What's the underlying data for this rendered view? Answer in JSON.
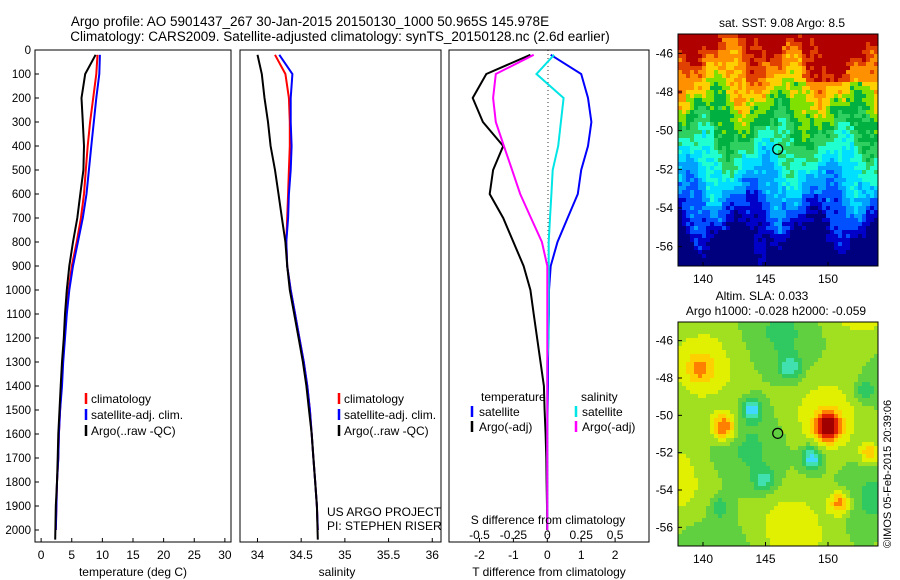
{
  "header": {
    "line1": "Argo profile: AO 5901437_267 30-Jan-2015 20150130_1000 50.965S 145.978E",
    "line2": "Climatology: CARS2009. Satellite-adjusted climatology: synTS_20150128.nc (2.6d earlier)"
  },
  "colors": {
    "climatology": "#ff0000",
    "satellite": "#0000ff",
    "argo": "#000000",
    "sat_salinity": "#00e5e5",
    "argo_salinity_diff": "#ff00ff"
  },
  "chart_data": [
    {
      "type": "line",
      "panel": "temperature",
      "xlabel": "temperature (deg C)",
      "ylabel": "",
      "xlim": [
        -1,
        31
      ],
      "ylim": [
        2050,
        0
      ],
      "xticks": [
        0,
        5,
        10,
        15,
        20,
        25,
        30
      ],
      "yticks": [
        0,
        100,
        200,
        300,
        400,
        500,
        600,
        700,
        800,
        900,
        1000,
        1100,
        1200,
        1300,
        1400,
        1500,
        1600,
        1700,
        1800,
        1900,
        2000
      ],
      "legend": [
        "climatology",
        "satellite-adj. clim.",
        "Argo(..raw -QC)"
      ],
      "series": [
        {
          "name": "climatology",
          "color": "#ff0000",
          "x": [
            9.2,
            9.0,
            8.5,
            8.0,
            7.6,
            7.3,
            7.0,
            6.5,
            5.8,
            5.0,
            4.5,
            4.1,
            3.8,
            3.5,
            3.3,
            3.1,
            2.9,
            2.8,
            2.6,
            2.5,
            2.4
          ],
          "y": [
            20,
            100,
            200,
            300,
            400,
            500,
            600,
            700,
            800,
            900,
            1000,
            1100,
            1200,
            1300,
            1400,
            1500,
            1600,
            1700,
            1800,
            1900,
            2000
          ]
        },
        {
          "name": "satellite-adj. clim.",
          "color": "#0000ff",
          "x": [
            9.6,
            9.5,
            9.0,
            8.6,
            8.2,
            7.8,
            7.4,
            6.8,
            6.0,
            5.2,
            4.6,
            4.2,
            3.9,
            3.6,
            3.4,
            3.1,
            2.9,
            2.8,
            2.6,
            2.5,
            2.4
          ],
          "y": [
            20,
            100,
            200,
            300,
            400,
            500,
            600,
            700,
            800,
            900,
            1000,
            1100,
            1200,
            1300,
            1400,
            1500,
            1600,
            1700,
            1800,
            1900,
            2000
          ]
        },
        {
          "name": "Argo(..raw -QC)",
          "color": "#000000",
          "x": [
            8.9,
            7.2,
            6.6,
            6.8,
            7.0,
            6.9,
            6.4,
            5.9,
            5.2,
            4.6,
            4.2,
            3.9,
            3.7,
            3.4,
            3.2,
            3.0,
            2.8,
            2.7,
            2.6,
            2.4,
            2.3
          ],
          "y": [
            20,
            100,
            200,
            300,
            400,
            500,
            600,
            700,
            800,
            900,
            1000,
            1100,
            1200,
            1300,
            1400,
            1500,
            1600,
            1700,
            1800,
            1900,
            2040
          ]
        }
      ]
    },
    {
      "type": "line",
      "panel": "salinity",
      "xlabel": "salinity",
      "ylabel": "",
      "xlim": [
        33.8,
        36.1
      ],
      "ylim": [
        2050,
        0
      ],
      "xticks": [
        34,
        34.5,
        35,
        35.5,
        36
      ],
      "legend": [
        "climatology",
        "satellite-adj. clim.",
        "Argo(..raw -QC)"
      ],
      "annotations": [
        "US ARGO PROJECT",
        "PI: STEPHEN RISER"
      ],
      "series": [
        {
          "name": "climatology",
          "color": "#ff0000",
          "x": [
            34.2,
            34.32,
            34.36,
            34.37,
            34.37,
            34.36,
            34.35,
            34.34,
            34.33,
            34.34,
            34.38,
            34.43,
            34.48,
            34.53,
            34.57,
            34.6,
            34.62,
            34.64,
            34.66,
            34.68,
            34.69
          ],
          "y": [
            20,
            100,
            200,
            300,
            400,
            500,
            600,
            700,
            800,
            900,
            1000,
            1100,
            1200,
            1300,
            1400,
            1500,
            1600,
            1700,
            1800,
            1900,
            2000
          ]
        },
        {
          "name": "satellite-adj. clim.",
          "color": "#0000ff",
          "x": [
            34.25,
            34.4,
            34.38,
            34.38,
            34.39,
            34.38,
            34.36,
            34.35,
            34.33,
            34.34,
            34.38,
            34.43,
            34.48,
            34.53,
            34.57,
            34.6,
            34.62,
            34.64,
            34.66,
            34.68,
            34.69
          ],
          "y": [
            20,
            100,
            200,
            300,
            400,
            500,
            600,
            700,
            800,
            900,
            1000,
            1100,
            1200,
            1300,
            1400,
            1500,
            1600,
            1700,
            1800,
            1900,
            2000
          ]
        },
        {
          "name": "Argo(..raw -QC)",
          "color": "#000000",
          "x": [
            34.0,
            34.05,
            34.08,
            34.12,
            34.15,
            34.2,
            34.24,
            34.28,
            34.32,
            34.34,
            34.37,
            34.42,
            34.47,
            34.52,
            34.56,
            34.59,
            34.62,
            34.64,
            34.66,
            34.68,
            34.69
          ],
          "y": [
            20,
            100,
            200,
            300,
            400,
            500,
            600,
            700,
            800,
            900,
            1000,
            1100,
            1200,
            1300,
            1400,
            1500,
            1600,
            1700,
            1800,
            1900,
            2040
          ]
        }
      ]
    },
    {
      "type": "line",
      "panel": "difference",
      "xlabel": "T difference from climatology",
      "top_axis_label": "S difference from climatology",
      "xlim": [
        -2.9,
        3.0
      ],
      "ylim": [
        2050,
        0
      ],
      "xticks": [
        -2,
        -1,
        0,
        1,
        2
      ],
      "top_ticks": [
        -0.5,
        -0.25,
        0,
        0.25,
        0.5
      ],
      "legend_headers": [
        "temperature",
        "salinity"
      ],
      "legend": [
        "satellite",
        "Argo(-adj)",
        "satellite",
        "Argo(-adj)"
      ],
      "series": [
        {
          "name": "satellite",
          "quantity": "temperature",
          "color": "#0000ff",
          "x": [
            0.1,
            1.0,
            1.2,
            1.3,
            1.2,
            1.0,
            0.9,
            0.6,
            0.3,
            0.1,
            0.05,
            0.05,
            0.03,
            0.02,
            0.02,
            0.01,
            0.0,
            0.0,
            0.0,
            0.0,
            0.0
          ],
          "y": [
            20,
            100,
            200,
            300,
            400,
            500,
            600,
            700,
            800,
            900,
            1000,
            1100,
            1200,
            1300,
            1400,
            1500,
            1600,
            1700,
            1800,
            1900,
            2000
          ]
        },
        {
          "name": "Argo(-adj)",
          "quantity": "temperature",
          "color": "#000000",
          "x": [
            -0.5,
            -1.8,
            -2.2,
            -1.9,
            -1.3,
            -1.6,
            -1.7,
            -1.3,
            -1.0,
            -0.7,
            -0.5,
            -0.4,
            -0.3,
            -0.2,
            -0.1,
            -0.08,
            -0.05,
            -0.03,
            -0.02,
            -0.01,
            -0.01
          ],
          "y": [
            20,
            100,
            200,
            300,
            400,
            500,
            600,
            700,
            800,
            900,
            1000,
            1100,
            1200,
            1300,
            1400,
            1500,
            1600,
            1700,
            1800,
            1900,
            2000
          ]
        },
        {
          "name": "satellite",
          "quantity": "salinity",
          "color": "#00e5e5",
          "x": [
            0.05,
            -0.08,
            0.12,
            0.1,
            0.08,
            0.04,
            0.03,
            0.02,
            0.01,
            0.01,
            0.01,
            0.01,
            0.01,
            0.0,
            0.0,
            0.0,
            0.0,
            0.0,
            0.0,
            0.0,
            0.0
          ],
          "y": [
            20,
            100,
            200,
            300,
            400,
            500,
            600,
            700,
            800,
            900,
            1000,
            1100,
            1200,
            1300,
            1400,
            1500,
            1600,
            1700,
            1800,
            1900,
            2000
          ]
        },
        {
          "name": "Argo(-adj)",
          "quantity": "salinity",
          "color": "#ff00ff",
          "x": [
            -0.1,
            -0.38,
            -0.4,
            -0.38,
            -0.32,
            -0.26,
            -0.2,
            -0.12,
            -0.04,
            0.0,
            0.0,
            0.0,
            0.0,
            0.0,
            0.0,
            0.0,
            0.0,
            0.0,
            0.0,
            0.0,
            0.0
          ],
          "y": [
            20,
            100,
            200,
            300,
            400,
            500,
            600,
            700,
            800,
            900,
            1000,
            1100,
            1200,
            1300,
            1400,
            1500,
            1600,
            1700,
            1800,
            1900,
            2000
          ]
        }
      ]
    },
    {
      "type": "heatmap",
      "panel": "sst_map",
      "title": "sat. SST: 9.08 Argo: 8.5",
      "xlim": [
        138,
        154
      ],
      "ylim": [
        -57,
        -45
      ],
      "xticks": [
        140,
        145,
        150
      ],
      "yticks": [
        -46,
        -48,
        -50,
        -52,
        -54,
        -56
      ],
      "marker": {
        "lon": 145.978,
        "lat": -50.965
      }
    },
    {
      "type": "heatmap",
      "panel": "sla_map",
      "title_line1": "Altim. SLA: 0.033",
      "title_line2": "Argo h1000: -0.028 h2000: -0.059",
      "xlim": [
        138,
        154
      ],
      "ylim": [
        -57,
        -45
      ],
      "xticks": [
        140,
        145,
        150
      ],
      "yticks": [
        -46,
        -48,
        -50,
        -52,
        -54,
        -56
      ],
      "marker": {
        "lon": 145.978,
        "lat": -50.965
      }
    }
  ],
  "footer": {
    "stamp": "©IMOS 05-Feb-2015 20:39:06"
  }
}
